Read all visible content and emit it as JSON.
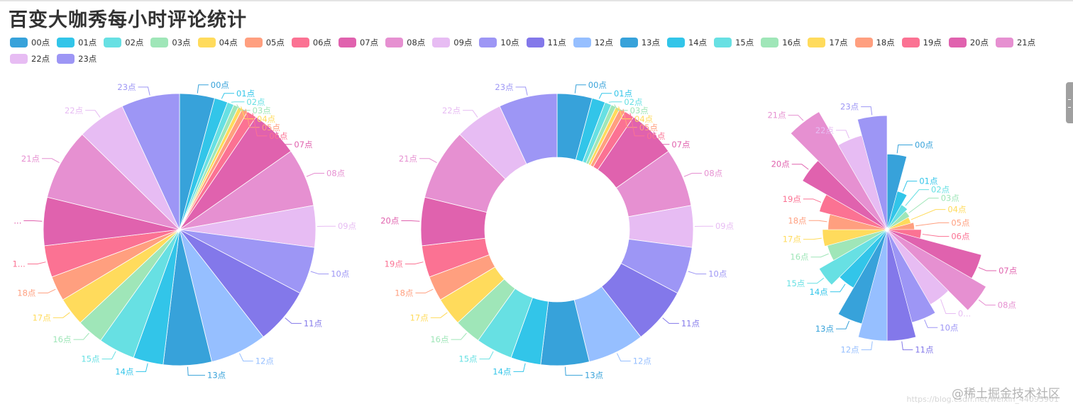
{
  "title": "百变大咖秀每小时评论统计",
  "watermark": "@稀土掘金技术社区",
  "watermark_url": "https://blog.csdn.net/weixin_44095901",
  "colors": [
    "#37a2da",
    "#32c5e9",
    "#67e0e3",
    "#9fe6b8",
    "#ffdb5c",
    "#ff9f7f",
    "#fb7293",
    "#e062ae",
    "#e690d1",
    "#e7bcf3",
    "#9d96f5",
    "#8378ea",
    "#96bfff"
  ],
  "chart_data": [
    {
      "type": "pie",
      "style": "full",
      "title": "",
      "categories": [
        "00点",
        "01点",
        "02点",
        "03点",
        "04点",
        "05点",
        "06点",
        "07点",
        "08点",
        "09点",
        "10点",
        "11点",
        "12点",
        "13点",
        "14点",
        "15点",
        "16点",
        "17点",
        "18点",
        "19点",
        "20点",
        "21点",
        "22点",
        "23点"
      ],
      "values": [
        42,
        16,
        8,
        6,
        5,
        7,
        12,
        58,
        70,
        50,
        57,
        68,
        68,
        58,
        36,
        44,
        32,
        34,
        30,
        38,
        58,
        86,
        58,
        70
      ],
      "labels": [
        "00点",
        "01点",
        "02点",
        "03点",
        "04点",
        "05点",
        "06点",
        "07点",
        "08点",
        "09点",
        "10点",
        "11点",
        "12点",
        "13点",
        "14点",
        "15点",
        "16点",
        "17点",
        "18点",
        "19点",
        "20点",
        "21点",
        "22点",
        "23点"
      ]
    },
    {
      "type": "pie",
      "style": "donut",
      "title": "",
      "categories": [
        "00点",
        "01点",
        "02点",
        "03点",
        "04点",
        "05点",
        "06点",
        "07点",
        "08点",
        "09点",
        "10点",
        "11点",
        "12点",
        "13点",
        "14点",
        "15点",
        "16点",
        "17点",
        "18点",
        "19点",
        "20点",
        "21点",
        "22点",
        "23点"
      ],
      "values": [
        42,
        16,
        8,
        6,
        5,
        7,
        12,
        58,
        70,
        50,
        57,
        68,
        68,
        58,
        36,
        44,
        32,
        34,
        30,
        38,
        58,
        86,
        58,
        70
      ],
      "labels": [
        "00点",
        "01点",
        "02点",
        "03点",
        "04点",
        "05点",
        "06点",
        "07点",
        "08点",
        "09点",
        "10点",
        "11点",
        "12点",
        "13点",
        "14点",
        "15点",
        "16点",
        "17点",
        "18点",
        "19点",
        "20点",
        "21点",
        "22点",
        "23点"
      ]
    },
    {
      "type": "pie",
      "style": "rose",
      "title": "",
      "categories": [
        "00点",
        "01点",
        "02点",
        "03点",
        "04点",
        "05点",
        "06点",
        "07点",
        "08点",
        "09点",
        "10点",
        "11点",
        "12点",
        "13点",
        "14点",
        "15点",
        "16点",
        "17点",
        "18点",
        "19点",
        "20点",
        "21点",
        "22点",
        "23点"
      ],
      "values": [
        42,
        16,
        8,
        6,
        5,
        7,
        12,
        58,
        70,
        50,
        57,
        68,
        68,
        58,
        36,
        44,
        32,
        34,
        30,
        38,
        58,
        86,
        58,
        70
      ],
      "labels": [
        "00点",
        "01点",
        "02点",
        "03点",
        "04点",
        "05点",
        "06点",
        "07点",
        "08点",
        "09点",
        "10点",
        "11点",
        "12点",
        "13点",
        "14点",
        "15点",
        "16点",
        "17点",
        "18点",
        "19点",
        "20点",
        "21点",
        "22点",
        "23点"
      ]
    }
  ],
  "display_labels": [
    [
      "00点",
      "01点",
      "02点",
      "03点",
      "04点",
      "05点",
      "06点",
      "07点",
      "08点",
      "09点",
      "10点",
      "11点",
      "12点",
      "13点",
      "14点",
      "15点",
      "16点",
      "17点",
      "18点",
      "1...",
      "...",
      "21点",
      "22点",
      "23点"
    ],
    [
      "00点",
      "01点",
      "02点",
      "03点",
      "04点",
      "05点",
      "06点",
      "07点",
      "08点",
      "09点",
      "10点",
      "11点",
      "12点",
      "13点",
      "14点",
      "15点",
      "16点",
      "17点",
      "18点",
      "19点",
      "20点",
      "21点",
      "22点",
      "23点"
    ],
    [
      "00点",
      "01点",
      "02点",
      "03点",
      "04点",
      "05点",
      "06点",
      "07点",
      "08点",
      "0...",
      "10点",
      "11点",
      "12点",
      "13点",
      "14点",
      "15点",
      "16点",
      "17点",
      "18点",
      "19点",
      "20点",
      "21点",
      "22点",
      "23点"
    ]
  ]
}
